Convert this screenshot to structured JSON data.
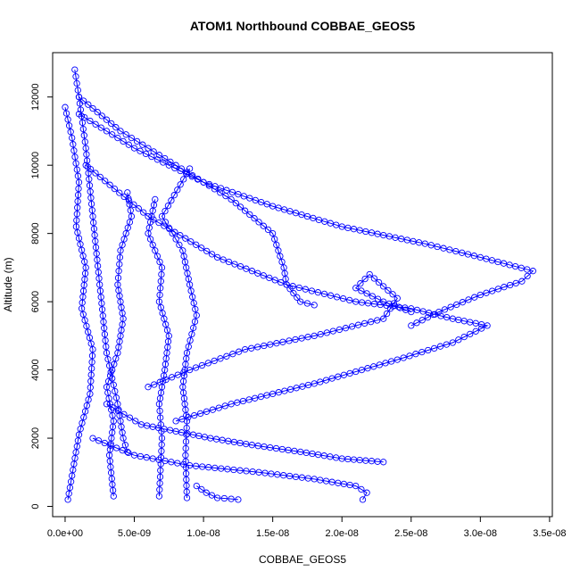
{
  "chart_data": {
    "type": "scatter",
    "title": "ATOM1 Northbound COBBAE_GEOS5",
    "xlabel": "COBBAE_GEOS5",
    "ylabel": "Altitude (m)",
    "xlim": [
      -9e-10,
      3.52e-08
    ],
    "ylim": [
      -300,
      13300
    ],
    "x_ticks": [
      0,
      5e-09,
      1e-08,
      1.5e-08,
      2e-08,
      2.5e-08,
      3e-08,
      3.5e-08
    ],
    "x_tick_labels": [
      "0.0e+00",
      "5.0e-09",
      "1.0e-08",
      "1.5e-08",
      "2.0e-08",
      "2.5e-08",
      "3.0e-08",
      "3.5e-08"
    ],
    "y_ticks": [
      0,
      2000,
      4000,
      6000,
      8000,
      10000,
      12000
    ],
    "y_tick_labels": [
      "0",
      "2000",
      "4000",
      "6000",
      "8000",
      "10000",
      "12000"
    ],
    "color": "#0000ff",
    "marker": "open-circle",
    "connected": true,
    "series": [
      {
        "x": [
          0.0,
          5e-10,
          1e-09,
          8e-10,
          1.5e-09,
          1.2e-09,
          2e-09,
          1.8e-09,
          1e-09,
          5e-10,
          2e-10
        ],
        "y": [
          11700,
          10800,
          9500,
          8200,
          7000,
          5800,
          4600,
          3300,
          2100,
          900,
          200
        ]
      },
      {
        "x": [
          7e-10,
          1e-09,
          1.5e-09,
          2e-09,
          2.5e-09,
          3e-09,
          3.8e-09,
          4.2e-09,
          4.5e-09
        ],
        "y": [
          12800,
          12000,
          10500,
          8500,
          6500,
          4500,
          3000,
          2000,
          1600
        ]
      },
      {
        "x": [
          1e-09,
          4e-09,
          8e-09,
          1.2e-08,
          1.5e-08,
          1.58e-08,
          1.6e-08,
          1.7e-08,
          1.8e-08
        ],
        "y": [
          12000,
          11000,
          10000,
          9000,
          8000,
          7000,
          6500,
          6000,
          5900
        ]
      },
      {
        "x": [
          1e-09,
          5e-09,
          1e-08,
          1.5e-08,
          2e-08,
          2.6e-08,
          3e-08,
          3.38e-08,
          3.3e-08,
          3e-08,
          2.7e-08,
          2.5e-08
        ],
        "y": [
          11500,
          10500,
          9500,
          8800,
          8200,
          7700,
          7300,
          6900,
          6600,
          6200,
          5700,
          5300
        ]
      },
      {
        "x": [
          2.5e-08,
          2.3e-08,
          2.1e-08,
          2.2e-08,
          2.4e-08,
          2.3e-08,
          1.8e-08,
          1.3e-08,
          9e-09,
          6e-09
        ],
        "y": [
          5700,
          6000,
          6400,
          6800,
          6100,
          5500,
          5000,
          4600,
          4000,
          3500
        ]
      },
      {
        "x": [
          1.5e-09,
          6e-09,
          1.1e-08,
          1.6e-08,
          2.1e-08,
          2.5e-08,
          2.8e-08,
          3.05e-08,
          2.8e-08,
          2.4e-08,
          1.8e-08,
          1.2e-08,
          8e-09
        ],
        "y": [
          10000,
          8500,
          7300,
          6500,
          6000,
          5800,
          5500,
          5300,
          4800,
          4300,
          3600,
          3000,
          2500
        ]
      },
      {
        "x": [
          4.5e-09,
          4.8e-09,
          4e-09,
          3.8e-09,
          4.2e-09,
          3.8e-09,
          3e-09,
          3.5e-09,
          3.2e-09,
          3.5e-09
        ],
        "y": [
          9200,
          8500,
          7500,
          6500,
          5500,
          4500,
          3500,
          2500,
          1500,
          300
        ]
      },
      {
        "x": [
          6.5e-09,
          6e-09,
          7e-09,
          6.8e-09,
          7.5e-09,
          7.2e-09,
          6.8e-09,
          7e-09,
          6.8e-09
        ],
        "y": [
          9000,
          8000,
          7000,
          6000,
          5000,
          4000,
          3000,
          2000,
          300
        ]
      },
      {
        "x": [
          9e-09,
          7e-09,
          8.5e-09,
          9e-09,
          9.5e-09,
          8.8e-09,
          8.5e-09,
          8.8e-09,
          8.7e-09,
          8.8e-09
        ],
        "y": [
          9900,
          8500,
          7500,
          6500,
          5600,
          4500,
          3500,
          2500,
          1500,
          250
        ]
      },
      {
        "x": [
          3e-09,
          5.5e-09,
          8e-09,
          1.05e-08,
          1.35e-08,
          1.7e-08,
          2e-08,
          2.3e-08
        ],
        "y": [
          3000,
          2400,
          2200,
          2000,
          1800,
          1600,
          1400,
          1300
        ]
      },
      {
        "x": [
          2e-09,
          5e-09,
          9e-09,
          1.4e-08,
          1.8e-08,
          2.1e-08,
          2.18e-08,
          2.15e-08
        ],
        "y": [
          2000,
          1500,
          1200,
          1000,
          800,
          600,
          400,
          200
        ]
      },
      {
        "x": [
          9.5e-09,
          1.02e-08,
          1.1e-08,
          1.2e-08,
          1.25e-08
        ],
        "y": [
          600,
          400,
          250,
          220,
          200
        ]
      }
    ]
  }
}
